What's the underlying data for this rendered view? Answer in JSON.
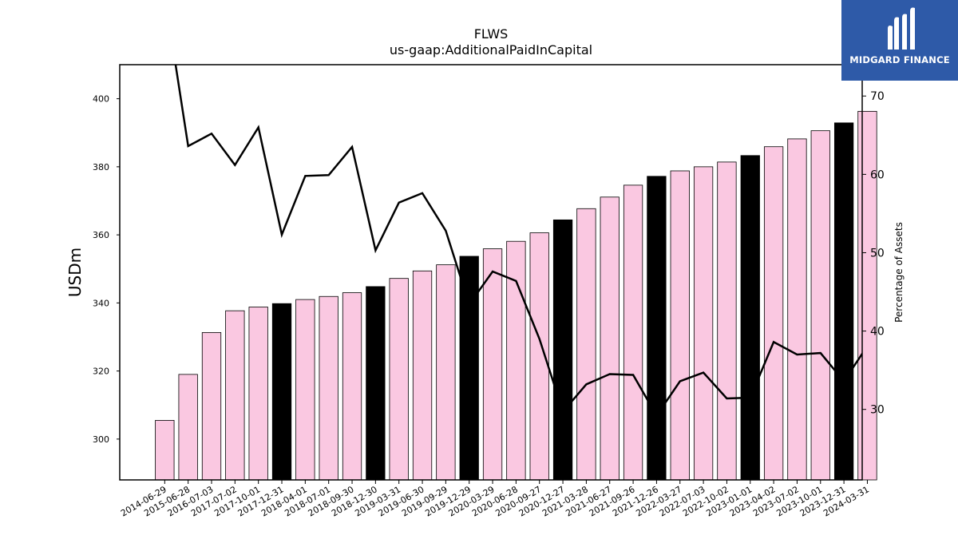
{
  "chart_data": {
    "type": "bar",
    "title": "FLWS",
    "subtitle": "us-gaap:AdditionalPaidInCapital",
    "ylabel": "USDm",
    "y2label": "Percentage of Assets",
    "ylim": [
      288,
      410
    ],
    "y2lim": [
      21,
      74
    ],
    "yticks": [
      300,
      320,
      340,
      360,
      380,
      400
    ],
    "y2ticks": [
      30,
      40,
      50,
      60,
      70
    ],
    "categories": [
      "2014-06-29",
      "2015-06-28",
      "2016-07-03",
      "2017-07-02",
      "2017-10-01",
      "2017-12-31",
      "2018-04-01",
      "2018-07-01",
      "2018-09-30",
      "2018-12-30",
      "2019-03-31",
      "2019-06-30",
      "2019-09-29",
      "2019-12-29",
      "2020-03-29",
      "2020-06-28",
      "2020-09-27",
      "2020-12-27",
      "2021-03-28",
      "2021-06-27",
      "2021-09-26",
      "2021-12-26",
      "2022-03-27",
      "2022-07-03",
      "2022-10-02",
      "2023-01-01",
      "2023-04-02",
      "2023-07-02",
      "2023-10-01",
      "2023-12-31",
      "2024-03-31"
    ],
    "series": [
      {
        "type": "bar",
        "values": [
          305.5,
          319.0,
          331.3,
          337.7,
          338.8,
          339.8,
          341.0,
          341.9,
          343.0,
          344.8,
          347.2,
          349.4,
          351.2,
          353.7,
          355.9,
          358.1,
          360.6,
          364.4,
          367.7,
          371.1,
          374.6,
          377.2,
          378.8,
          380.0,
          381.4,
          383.3,
          385.9,
          388.2,
          390.6,
          392.9,
          396.3
        ],
        "highlight": [
          false,
          false,
          false,
          false,
          false,
          true,
          false,
          false,
          false,
          true,
          false,
          false,
          false,
          true,
          false,
          false,
          false,
          true,
          false,
          false,
          false,
          true,
          false,
          false,
          false,
          true,
          false,
          false,
          false,
          true,
          false
        ]
      },
      {
        "type": "line",
        "axis": "right",
        "values": [
          83.0,
          63.6,
          65.2,
          61.2,
          66.0,
          52.3,
          59.8,
          59.9,
          63.5,
          50.3,
          56.4,
          57.6,
          52.8,
          43.4,
          47.6,
          46.4,
          39.0,
          29.7,
          33.2,
          34.5,
          34.4,
          29.2,
          33.6,
          34.7,
          31.4,
          31.5,
          38.6,
          37.0,
          37.2,
          33.6,
          38.1
        ]
      }
    ],
    "colors": {
      "bar": "#fac8e1",
      "bar_highlight": "#000000",
      "line": "#000000"
    }
  },
  "logo": {
    "text": "MIDGARD FINANCE",
    "bg": "#2e5aa8"
  }
}
